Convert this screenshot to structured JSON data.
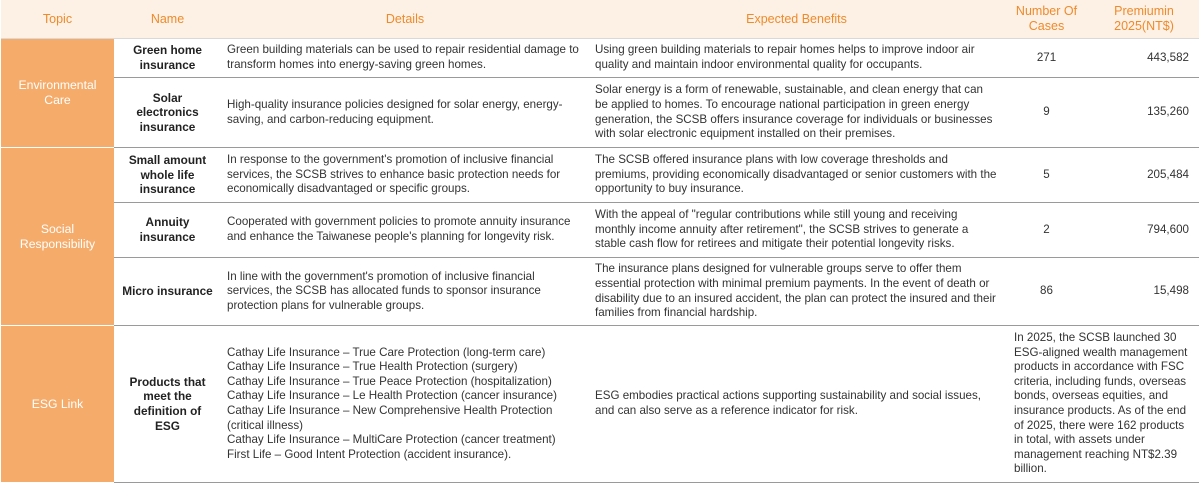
{
  "headers": {
    "topic": "Topic",
    "name": "Name",
    "details": "Details",
    "benefits": "Expected Benefits",
    "cases": "Number Of Cases",
    "premium": "Premiumin 2025(NT$)"
  },
  "topics": {
    "environmental": "Environmental Care",
    "social": "Social Responsibility",
    "esg": "ESG Link"
  },
  "rows": [
    {
      "name": "Green home insurance",
      "details": "Green building materials can be used to repair residential damage to transform homes into energy-saving green homes.",
      "benefits": "Using green building materials to repair homes helps to improve indoor air quality and maintain indoor environmental quality for occupants.",
      "cases": "271",
      "premium": "443,582"
    },
    {
      "name": "Solar electronics insurance",
      "details": "High-quality insurance policies designed for solar energy, energy-saving, and carbon-reducing equipment.",
      "benefits": "Solar energy is a form of renewable, sustainable, and clean energy that can be applied to homes. To encourage national participation in green energy generation, the SCSB offers insurance coverage for individuals or businesses with solar electronic equipment installed on their premises.",
      "cases": "9",
      "premium": "135,260"
    },
    {
      "name": "Small amount whole life insurance",
      "details": "In response to the government's promotion of inclusive financial services, the SCSB strives to enhance basic protection needs for economically disadvantaged or specific groups.",
      "benefits": "The SCSB offered insurance plans with low coverage thresholds and premiums, providing economically disadvantaged or senior customers with the opportunity to buy insurance.",
      "cases": "5",
      "premium": "205,484"
    },
    {
      "name": "Annuity insurance",
      "details": "Cooperated with government policies to promote annuity insurance and enhance the Taiwanese people's planning for longevity risk.",
      "benefits": "With the appeal of \"regular contributions while still young and receiving monthly income annuity after retirement\", the SCSB strives to generate a stable cash flow for retirees and mitigate their potential longevity risks.",
      "cases": "2",
      "premium": "794,600"
    },
    {
      "name": "Micro insurance",
      "details": "In line with the government's promotion of inclusive financial services, the SCSB has allocated funds to sponsor insurance protection plans for vulnerable groups.",
      "benefits": "The insurance plans designed for vulnerable groups serve to offer them essential protection with minimal premium payments. In the event of death or disability due to an insured accident, the plan can protect the insured and their families from financial hardship.",
      "cases": "86",
      "premium": "15,498"
    }
  ],
  "esg": {
    "name": "Products that meet the definition of ESG",
    "details": [
      "Cathay Life Insurance – True Care Protection (long-term care)",
      "Cathay Life Insurance – True Health Protection (surgery)",
      "Cathay Life Insurance – True Peace Protection (hospitalization)",
      "Cathay Life Insurance – Le Health Protection (cancer insurance)",
      "Cathay Life Insurance – New Comprehensive Health Protection (critical illness)",
      "Cathay Life Insurance – MultiCare Protection (cancer treatment)",
      "First Life – Good Intent Protection (accident insurance)."
    ],
    "benefits": "ESG embodies practical actions supporting sustainability and social issues, and can also serve as a reference indicator for risk.",
    "summary": "In 2025, the SCSB launched 30 ESG-aligned wealth management products in accordance with FSC criteria, including funds, overseas bonds, overseas equities, and insurance products. As of the end of 2025, there were 162 products in total, with assets under management reaching NT$2.39 billion."
  }
}
